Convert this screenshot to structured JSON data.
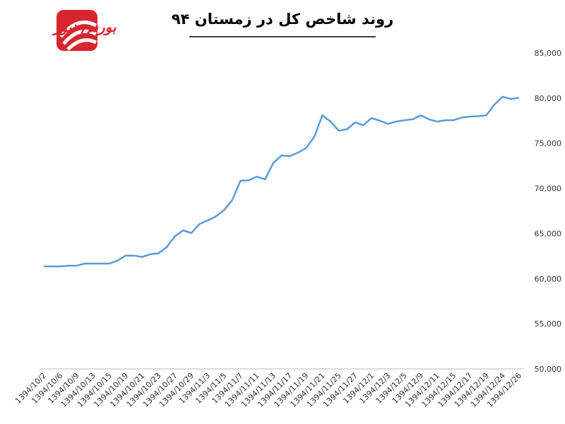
{
  "logo": "بورس نیوز",
  "chart_data": {
    "type": "line",
    "title": "روند شاخص کل در زمستان ۹۴",
    "categories": [
      "1394/10/2",
      null,
      "1394/10/6",
      null,
      "1394/10/9",
      null,
      "1394/10/13",
      null,
      "1394/10/15",
      null,
      "1394/10/19",
      null,
      "1394/10/21",
      null,
      "1394/10/23",
      null,
      "1394/10/27",
      null,
      "1394/10/29",
      null,
      "1394/11/3",
      null,
      "1394/11/5",
      null,
      "1394/11/7",
      null,
      "1394/11/11",
      null,
      "1394/11/13",
      null,
      "1394/11/17",
      null,
      "1394/11/19",
      null,
      "1394/11/21",
      null,
      "1394/11/25",
      null,
      "1394/11/27",
      null,
      "1394/12/1",
      null,
      "1394/12/3",
      null,
      "1394/12/5",
      null,
      "1394/12/9",
      null,
      "1394/12/11",
      null,
      "1394/12/15",
      null,
      "1394/12/17",
      null,
      "1394/12/19",
      null,
      "1394/12/24",
      null,
      "1394/12/26"
    ],
    "values": [
      61350,
      61350,
      61350,
      61430,
      61430,
      61670,
      61670,
      61670,
      61670,
      62000,
      62550,
      62550,
      62400,
      62700,
      62800,
      63500,
      64700,
      65350,
      65050,
      66050,
      66450,
      66900,
      67600,
      68700,
      70850,
      70900,
      71300,
      71000,
      72800,
      73650,
      73570,
      73950,
      74450,
      75700,
      78100,
      77400,
      76400,
      76550,
      77300,
      77000,
      77800,
      77500,
      77150,
      77400,
      77550,
      77650,
      78100,
      77650,
      77400,
      77550,
      77550,
      77850,
      77950,
      78000,
      78100,
      79300,
      80150,
      79900,
      80050
    ],
    "color": "#5b9bd5",
    "ylim": [
      50000,
      85000
    ],
    "yticks": [
      {
        "value": 50000,
        "label": "50,000"
      },
      {
        "value": 55000,
        "label": "55,000"
      },
      {
        "value": 60000,
        "label": "60,000"
      },
      {
        "value": 65000,
        "label": "65,000"
      },
      {
        "value": 70000,
        "label": "70,000"
      },
      {
        "value": 75000,
        "label": "75,000"
      },
      {
        "value": 80000,
        "label": "80,000"
      },
      {
        "value": 85000,
        "label": "85,000"
      }
    ],
    "grid": false
  }
}
